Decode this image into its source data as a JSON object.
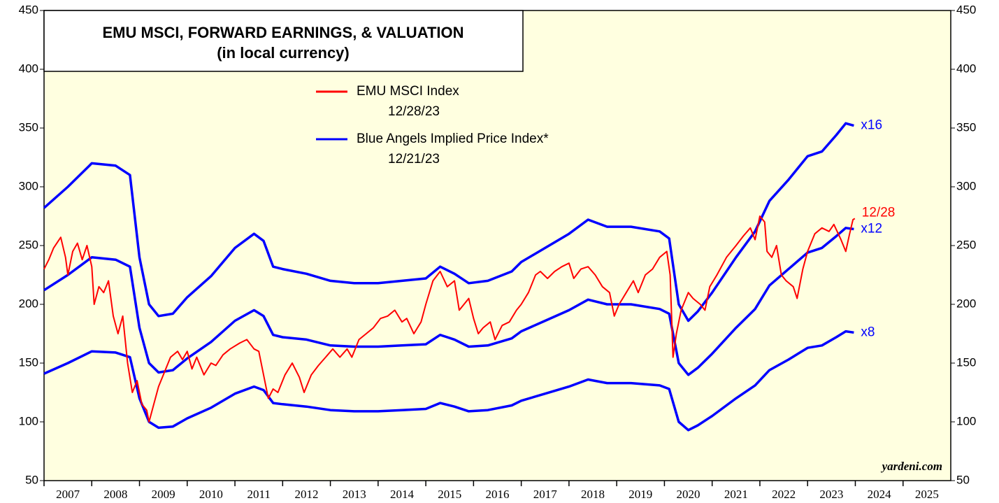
{
  "chart_data": {
    "type": "line",
    "title": "EMU MSCI, FORWARD EARNINGS, & VALUATION",
    "subtitle": "(in local currency)",
    "legend": [
      {
        "label": "EMU MSCI Index",
        "date": "12/28/23",
        "color": "#ff0000"
      },
      {
        "label": "Blue Angels Implied Price Index*",
        "date": "12/21/23",
        "color": "#0000ff"
      }
    ],
    "source": "yardeni.com",
    "xlim": [
      2007,
      2026
    ],
    "xticks": [
      2007,
      2008,
      2009,
      2010,
      2011,
      2012,
      2013,
      2014,
      2015,
      2016,
      2017,
      2018,
      2019,
      2020,
      2021,
      2022,
      2023,
      2024,
      2025
    ],
    "ylim": [
      50,
      450
    ],
    "yticks": [
      50,
      100,
      150,
      200,
      250,
      300,
      350,
      400,
      450
    ],
    "background": "#ffffe0",
    "x": [
      2007.0,
      2007.5,
      2008.0,
      2008.5,
      2008.8,
      2009.0,
      2009.2,
      2009.4,
      2009.7,
      2010.0,
      2010.5,
      2011.0,
      2011.4,
      2011.6,
      2011.8,
      2012.0,
      2012.5,
      2013.0,
      2013.5,
      2014.0,
      2014.5,
      2015.0,
      2015.3,
      2015.6,
      2015.9,
      2016.3,
      2016.8,
      2017.0,
      2017.5,
      2018.0,
      2018.4,
      2018.8,
      2019.3,
      2019.9,
      2020.1,
      2020.3,
      2020.5,
      2020.7,
      2021.0,
      2021.5,
      2021.9,
      2022.2,
      2022.6,
      2023.0,
      2023.3,
      2023.6,
      2023.8,
      2023.97
    ],
    "series": [
      {
        "name": "x16",
        "color": "#0000ff",
        "values": [
          282,
          300,
          320,
          318,
          310,
          240,
          200,
          190,
          192,
          206,
          224,
          248,
          260,
          254,
          232,
          230,
          226,
          220,
          218,
          218,
          220,
          222,
          232,
          226,
          218,
          220,
          228,
          236,
          248,
          260,
          272,
          266,
          266,
          262,
          256,
          200,
          186,
          194,
          210,
          240,
          262,
          288,
          306,
          326,
          330,
          344,
          354,
          352
        ]
      },
      {
        "name": "x12",
        "color": "#0000ff",
        "values": [
          212,
          225,
          240,
          238,
          232,
          180,
          150,
          142,
          144,
          154,
          168,
          186,
          195,
          190,
          174,
          172,
          170,
          165,
          164,
          164,
          165,
          166,
          174,
          170,
          164,
          165,
          171,
          177,
          186,
          195,
          204,
          200,
          200,
          196,
          192,
          150,
          140,
          146,
          158,
          180,
          196,
          216,
          230,
          244,
          248,
          258,
          265,
          264
        ]
      },
      {
        "name": "x8",
        "color": "#0000ff",
        "values": [
          141,
          150,
          160,
          159,
          155,
          120,
          100,
          95,
          96,
          103,
          112,
          124,
          130,
          127,
          116,
          115,
          113,
          110,
          109,
          109,
          110,
          111,
          116,
          113,
          109,
          110,
          114,
          118,
          124,
          130,
          136,
          133,
          133,
          131,
          128,
          100,
          93,
          97,
          105,
          120,
          131,
          144,
          153,
          163,
          165,
          172,
          177,
          176
        ]
      },
      {
        "name": "12/28",
        "color": "#ff0000",
        "x": [
          2007.0,
          2007.1,
          2007.2,
          2007.35,
          2007.45,
          2007.5,
          2007.6,
          2007.7,
          2007.8,
          2007.9,
          2008.0,
          2008.05,
          2008.15,
          2008.25,
          2008.35,
          2008.45,
          2008.55,
          2008.65,
          2008.75,
          2008.85,
          2008.95,
          2009.05,
          2009.15,
          2009.2,
          2009.3,
          2009.4,
          2009.5,
          2009.65,
          2009.8,
          2009.9,
          2010.0,
          2010.1,
          2010.2,
          2010.35,
          2010.5,
          2010.6,
          2010.75,
          2010.9,
          2011.1,
          2011.25,
          2011.4,
          2011.5,
          2011.6,
          2011.7,
          2011.8,
          2011.9,
          2012.05,
          2012.2,
          2012.35,
          2012.45,
          2012.6,
          2012.75,
          2012.9,
          2013.05,
          2013.2,
          2013.35,
          2013.45,
          2013.6,
          2013.75,
          2013.9,
          2014.05,
          2014.2,
          2014.35,
          2014.5,
          2014.6,
          2014.75,
          2014.9,
          2015.0,
          2015.15,
          2015.3,
          2015.45,
          2015.6,
          2015.7,
          2015.8,
          2015.9,
          2016.0,
          2016.1,
          2016.2,
          2016.35,
          2016.45,
          2016.6,
          2016.75,
          2016.9,
          2017.0,
          2017.15,
          2017.3,
          2017.4,
          2017.55,
          2017.7,
          2017.85,
          2018.0,
          2018.1,
          2018.25,
          2018.4,
          2018.55,
          2018.7,
          2018.85,
          2018.95,
          2019.05,
          2019.2,
          2019.35,
          2019.45,
          2019.6,
          2019.75,
          2019.9,
          2020.05,
          2020.12,
          2020.18,
          2020.25,
          2020.35,
          2020.5,
          2020.6,
          2020.75,
          2020.85,
          2020.95,
          2021.1,
          2021.3,
          2021.5,
          2021.65,
          2021.8,
          2021.9,
          2022.0,
          2022.1,
          2022.15,
          2022.25,
          2022.35,
          2022.45,
          2022.55,
          2022.7,
          2022.78,
          2022.9,
          2023.0,
          2023.15,
          2023.3,
          2023.45,
          2023.55,
          2023.7,
          2023.8,
          2023.88,
          2023.95,
          2023.99
        ],
        "values": [
          230,
          238,
          248,
          257,
          240,
          225,
          245,
          252,
          238,
          250,
          232,
          200,
          215,
          210,
          220,
          190,
          175,
          190,
          150,
          125,
          135,
          115,
          110,
          100,
          115,
          130,
          140,
          155,
          160,
          153,
          160,
          145,
          155,
          140,
          150,
          148,
          157,
          162,
          167,
          170,
          162,
          160,
          140,
          120,
          128,
          125,
          140,
          150,
          138,
          125,
          140,
          148,
          155,
          162,
          155,
          162,
          155,
          170,
          175,
          180,
          188,
          190,
          195,
          185,
          188,
          175,
          185,
          200,
          220,
          228,
          215,
          220,
          195,
          200,
          205,
          188,
          175,
          180,
          185,
          170,
          182,
          185,
          195,
          200,
          210,
          225,
          228,
          222,
          228,
          232,
          235,
          222,
          230,
          232,
          225,
          215,
          210,
          190,
          200,
          210,
          220,
          210,
          225,
          230,
          240,
          245,
          225,
          155,
          175,
          195,
          210,
          205,
          200,
          195,
          215,
          225,
          240,
          250,
          258,
          265,
          255,
          275,
          270,
          245,
          240,
          250,
          225,
          220,
          215,
          205,
          230,
          245,
          260,
          265,
          262,
          268,
          255,
          245,
          260,
          272,
          273
        ]
      }
    ]
  }
}
